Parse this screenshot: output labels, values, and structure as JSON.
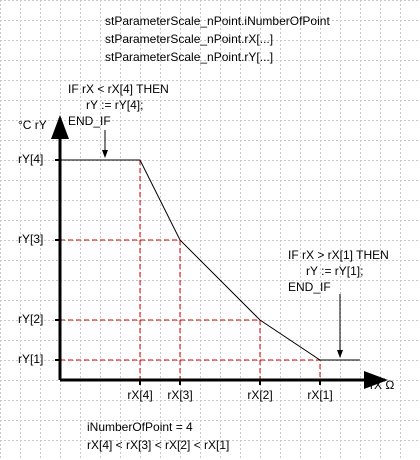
{
  "header": {
    "lines": [
      "stParameterScale_nPoint.iNumberOfPoint",
      "stParameterScale_nPoint.rX[...]",
      "stParameterScale_nPoint.rY[...]"
    ]
  },
  "left_note": {
    "lines": [
      "IF rX < rX[4] THEN",
      "rY := rY[4];",
      "END_IF"
    ]
  },
  "right_note": {
    "lines": [
      "IF rX > rX[1] THEN",
      "rY := rY[1];",
      "END_IF"
    ]
  },
  "axes": {
    "y_label": "°C  rY",
    "x_label": "rX  Ω"
  },
  "y_labels": [
    "rY[4]",
    "rY[3]",
    "rY[2]",
    "rY[1]"
  ],
  "x_labels": [
    "rX[4]",
    "rX[3]",
    "rX[2]",
    "rX[1]"
  ],
  "footer": {
    "lines": [
      "iNumberOfPoint = 4",
      "rX[4] < rX[3] < rX[2] < rX[1]"
    ]
  }
}
